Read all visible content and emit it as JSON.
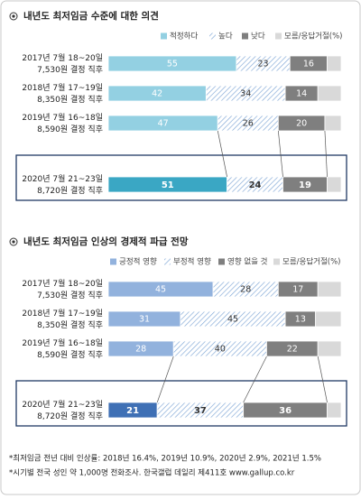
{
  "chart_data": [
    {
      "type": "stacked-barh",
      "title": "내년도 최저임금 수준에 대한 의견",
      "categories": [
        [
          "2017년 7월 18~20일",
          "7,530원 결정 직후"
        ],
        [
          "2018년 7월 17~19일",
          "8,350원 결정 직후"
        ],
        [
          "2019년 7월 16~18일",
          "8,590원 결정 직후"
        ],
        [
          "2020년 7월 21~23일",
          "8,720원 결정 직후"
        ]
      ],
      "xlim": [
        0,
        100
      ],
      "highlight_category": 3,
      "series": [
        {
          "name": "적정하다",
          "color": "#93d0e2",
          "highlight_color": "#3aa7c4",
          "values": [
            55,
            42,
            47,
            51
          ]
        },
        {
          "name": "높다",
          "color": "#7fa7d6",
          "pattern": "hatch",
          "values": [
            23,
            34,
            26,
            24
          ]
        },
        {
          "name": "낮다",
          "color": "#7f7f7f",
          "values": [
            16,
            14,
            20,
            19
          ]
        },
        {
          "name": "모름/응답거절(%)",
          "color": "#d9d9d9",
          "values": [
            6,
            10,
            7,
            6
          ]
        }
      ]
    },
    {
      "type": "stacked-barh",
      "title": "내년도 최저임금 인상의 경제적 파급 전망",
      "categories": [
        [
          "2017년 7월 18~20일",
          "7,530원 결정 직후"
        ],
        [
          "2018년 7월 17~19일",
          "8,350원 결정 직후"
        ],
        [
          "2019년 7월 16~18일",
          "8,590원 결정 직후"
        ],
        [
          "2020년 7월 21~23일",
          "8,720원 결정 직후"
        ]
      ],
      "xlim": [
        0,
        100
      ],
      "highlight_category": 3,
      "series": [
        {
          "name": "긍정적 영향",
          "color": "#92b2dd",
          "highlight_color": "#3f70b5",
          "values": [
            45,
            31,
            28,
            21
          ]
        },
        {
          "name": "부정적 영향",
          "color": "#7fa7d6",
          "pattern": "hatch",
          "values": [
            28,
            45,
            40,
            37
          ]
        },
        {
          "name": "영향 없을 것",
          "color": "#7f7f7f",
          "values": [
            17,
            13,
            22,
            36
          ]
        },
        {
          "name": "모름/응답거절(%)",
          "color": "#d9d9d9",
          "values": [
            10,
            11,
            10,
            6
          ]
        }
      ]
    }
  ],
  "footnotes": [
    "*최저임금 전년 대비 인상률: 2018년 16.4%, 2019년 10.9%, 2020년 2.9%, 2021년 1.5%",
    "*시기별 전국 성인 약 1,000명 전화조사. 한국갤럽 데일리 제411호 www.gallup.co.kr"
  ]
}
